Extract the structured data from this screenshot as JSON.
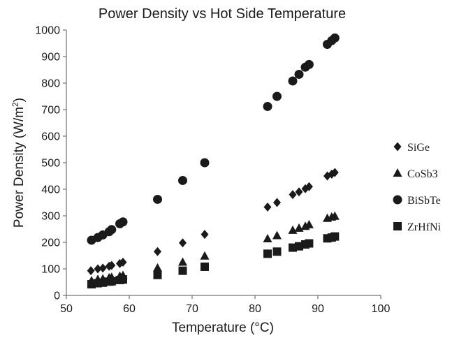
{
  "chart_data": {
    "type": "scatter",
    "title": "Power Density vs Hot Side Temperature",
    "xlabel": "Temperature (°C)",
    "ylabel_main": "Power Density (W/m",
    "ylabel_sup": "2",
    "ylabel_close": ")",
    "xlim": [
      50,
      100
    ],
    "ylim": [
      0,
      1000
    ],
    "xticks": [
      50,
      60,
      70,
      80,
      90,
      100
    ],
    "yticks": [
      0,
      100,
      200,
      300,
      400,
      500,
      600,
      700,
      800,
      900,
      1000
    ],
    "grid": false,
    "legend_position": "right",
    "series": [
      {
        "name": "SiGe",
        "marker": "diamond",
        "color": "#1a1a1a",
        "points": [
          [
            53.9,
            93
          ],
          [
            55,
            100
          ],
          [
            55.8,
            103
          ],
          [
            56.8,
            110
          ],
          [
            57.2,
            113
          ],
          [
            58.5,
            120
          ],
          [
            59,
            125
          ],
          [
            64.5,
            165
          ],
          [
            68.5,
            198
          ],
          [
            72,
            230
          ],
          [
            82,
            333
          ],
          [
            83.5,
            350
          ],
          [
            86,
            380
          ],
          [
            87,
            390
          ],
          [
            88,
            402
          ],
          [
            88.6,
            410
          ],
          [
            91.5,
            450
          ],
          [
            92.2,
            457
          ],
          [
            92.7,
            463
          ]
        ]
      },
      {
        "name": "CoSb3",
        "marker": "triangle",
        "color": "#1a1a1a",
        "points": [
          [
            54,
            55
          ],
          [
            55,
            60
          ],
          [
            55.8,
            62
          ],
          [
            56.8,
            66
          ],
          [
            57.2,
            68
          ],
          [
            58.5,
            72
          ],
          [
            59,
            75
          ],
          [
            64.5,
            103
          ],
          [
            68.5,
            125
          ],
          [
            72,
            148
          ],
          [
            82,
            213
          ],
          [
            83.5,
            225
          ],
          [
            86,
            245
          ],
          [
            87,
            253
          ],
          [
            88,
            260
          ],
          [
            88.6,
            266
          ],
          [
            91.5,
            290
          ],
          [
            92.2,
            295
          ],
          [
            92.7,
            298
          ]
        ]
      },
      {
        "name": "BiSbTe",
        "marker": "circle",
        "color": "#1a1a1a",
        "points": [
          [
            54,
            208
          ],
          [
            55,
            218
          ],
          [
            55.8,
            228
          ],
          [
            56.8,
            240
          ],
          [
            57.2,
            248
          ],
          [
            58.5,
            270
          ],
          [
            59,
            277
          ],
          [
            64.5,
            362
          ],
          [
            68.5,
            433
          ],
          [
            72,
            500
          ],
          [
            82,
            712
          ],
          [
            83.5,
            750
          ],
          [
            86,
            808
          ],
          [
            87,
            833
          ],
          [
            88,
            860
          ],
          [
            88.6,
            870
          ],
          [
            91.5,
            946
          ],
          [
            92.2,
            960
          ],
          [
            92.7,
            970
          ]
        ]
      },
      {
        "name": "ZrHfNi",
        "marker": "square",
        "color": "#1a1a1a",
        "points": [
          [
            54,
            42
          ],
          [
            55,
            46
          ],
          [
            55.8,
            48
          ],
          [
            56.8,
            52
          ],
          [
            57.2,
            53
          ],
          [
            58.5,
            58
          ],
          [
            59,
            60
          ],
          [
            64.5,
            77
          ],
          [
            68.5,
            93
          ],
          [
            72,
            108
          ],
          [
            82,
            157
          ],
          [
            83.5,
            165
          ],
          [
            86,
            180
          ],
          [
            87,
            185
          ],
          [
            88,
            192
          ],
          [
            88.6,
            196
          ],
          [
            91.5,
            215
          ],
          [
            92.2,
            218
          ],
          [
            92.7,
            222
          ]
        ]
      }
    ]
  }
}
